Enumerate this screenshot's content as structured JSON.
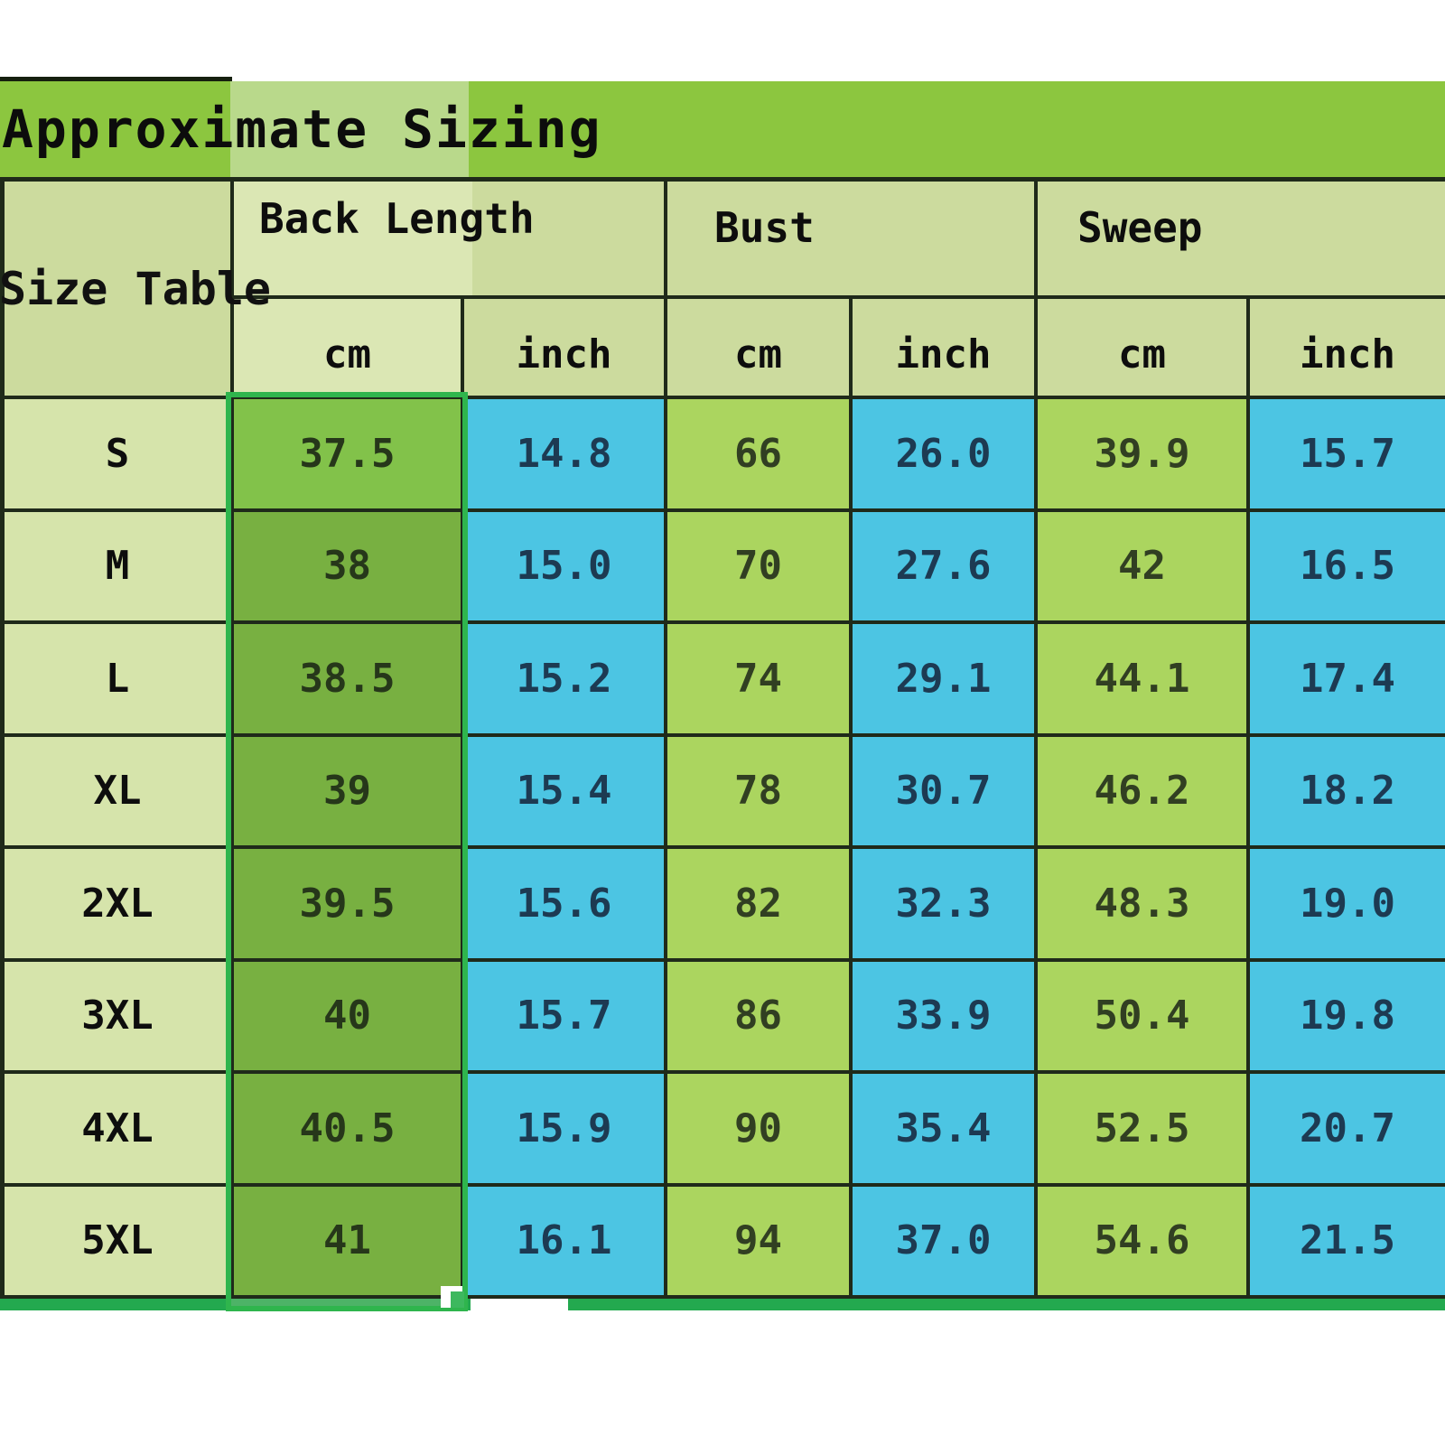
{
  "chart_data": {
    "type": "table",
    "title": "Approximate Sizing",
    "corner_label": "Size Table",
    "column_groups": [
      "Back Length",
      "Bust",
      "Sweep"
    ],
    "unit_headers": [
      "cm",
      "inch",
      "cm",
      "inch",
      "cm",
      "inch"
    ],
    "row_labels": [
      "S",
      "M",
      "L",
      "XL",
      "2XL",
      "3XL",
      "4XL",
      "5XL"
    ],
    "rows": [
      {
        "size": "S",
        "back_length_cm": "37.5",
        "back_length_inch": "14.8",
        "bust_cm": "66",
        "bust_inch": "26.0",
        "sweep_cm": "39.9",
        "sweep_inch": "15.7"
      },
      {
        "size": "M",
        "back_length_cm": "38",
        "back_length_inch": "15.0",
        "bust_cm": "70",
        "bust_inch": "27.6",
        "sweep_cm": "42",
        "sweep_inch": "16.5"
      },
      {
        "size": "L",
        "back_length_cm": "38.5",
        "back_length_inch": "15.2",
        "bust_cm": "74",
        "bust_inch": "29.1",
        "sweep_cm": "44.1",
        "sweep_inch": "17.4"
      },
      {
        "size": "XL",
        "back_length_cm": "39",
        "back_length_inch": "15.4",
        "bust_cm": "78",
        "bust_inch": "30.7",
        "sweep_cm": "46.2",
        "sweep_inch": "18.2"
      },
      {
        "size": "2XL",
        "back_length_cm": "39.5",
        "back_length_inch": "15.6",
        "bust_cm": "82",
        "bust_inch": "32.3",
        "sweep_cm": "48.3",
        "sweep_inch": "19.0"
      },
      {
        "size": "3XL",
        "back_length_cm": "40",
        "back_length_inch": "15.7",
        "bust_cm": "86",
        "bust_inch": "33.9",
        "sweep_cm": "50.4",
        "sweep_inch": "19.8"
      },
      {
        "size": "4XL",
        "back_length_cm": "40.5",
        "back_length_inch": "15.9",
        "bust_cm": "90",
        "bust_inch": "35.4",
        "sweep_cm": "52.5",
        "sweep_inch": "20.7"
      },
      {
        "size": "5XL",
        "back_length_cm": "41",
        "back_length_inch": "16.1",
        "bust_cm": "94",
        "bust_inch": "37.0",
        "sweep_cm": "54.6",
        "sweep_inch": "21.5"
      }
    ],
    "layout": {
      "units_note": "each measurement group split into cm and inch sub-columns",
      "selected_column": "Back Length cm"
    },
    "colors": {
      "title_bar_green": "#8cc63f",
      "title_band_light": "#b9d98b",
      "header_pale": "#ccdb9e",
      "size_column_pale": "#d6e4ab",
      "selected_column_green": "#78b041",
      "selected_first_cell_green": "#82c24a",
      "inch_cell_blue": "#4cc5e3",
      "cm_cell_yellow_green": "#abd55f",
      "selection_border_green": "#2fb54d",
      "bottom_strip_green": "#23a94f",
      "grid_line": "#1f2a1a"
    }
  }
}
